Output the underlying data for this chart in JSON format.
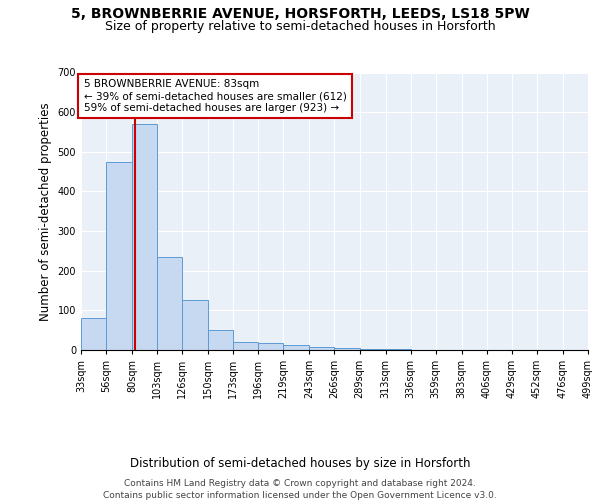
{
  "title": "5, BROWNBERRIE AVENUE, HORSFORTH, LEEDS, LS18 5PW",
  "subtitle": "Size of property relative to semi-detached houses in Horsforth",
  "xlabel": "Distribution of semi-detached houses by size in Horsforth",
  "ylabel": "Number of semi-detached properties",
  "bin_edges": [
    33,
    56,
    80,
    103,
    126,
    150,
    173,
    196,
    219,
    243,
    266,
    289,
    313,
    336,
    359,
    383,
    406,
    429,
    452,
    476,
    499
  ],
  "bar_heights": [
    80,
    475,
    570,
    235,
    125,
    50,
    20,
    18,
    13,
    8,
    5,
    2,
    2,
    1,
    1,
    0,
    0,
    1,
    0,
    0
  ],
  "bar_color": "#c6d9f0",
  "bar_edgecolor": "#5b9bd5",
  "redline_x": 83,
  "redline_color": "#cc0000",
  "annotation_text": "5 BROWNBERRIE AVENUE: 83sqm\n← 39% of semi-detached houses are smaller (612)\n59% of semi-detached houses are larger (923) →",
  "annotation_box_color": "#ffffff",
  "annotation_box_edgecolor": "#cc0000",
  "ylim": [
    0,
    700
  ],
  "yticks": [
    0,
    100,
    200,
    300,
    400,
    500,
    600,
    700
  ],
  "background_color": "#eaf0f8",
  "grid_color": "#ffffff",
  "footer_line1": "Contains HM Land Registry data © Crown copyright and database right 2024.",
  "footer_line2": "Contains public sector information licensed under the Open Government Licence v3.0.",
  "title_fontsize": 10,
  "subtitle_fontsize": 9,
  "tick_fontsize": 7,
  "label_fontsize": 8.5,
  "annotation_fontsize": 7.5
}
